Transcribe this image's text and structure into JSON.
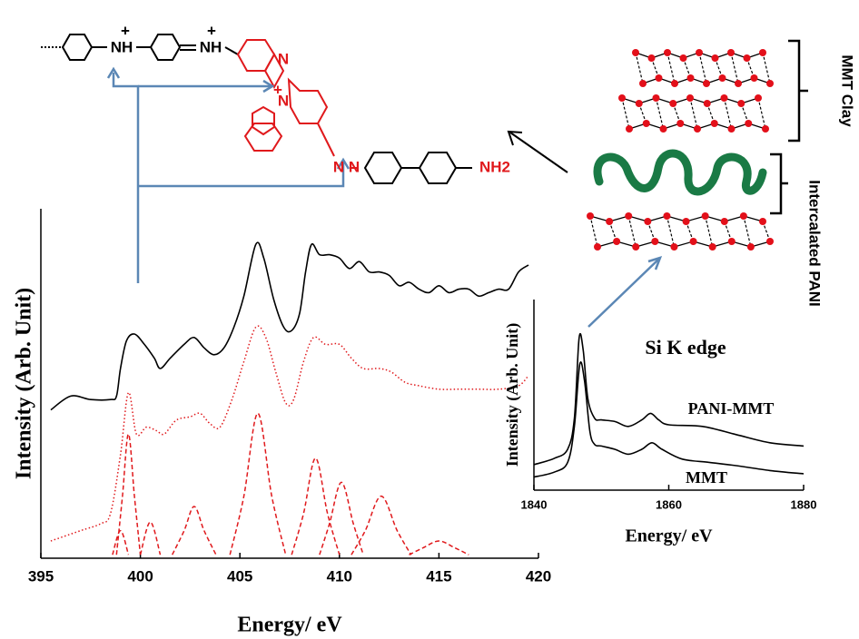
{
  "chart_data": [
    {
      "type": "line",
      "xlabel": "Energy/ eV",
      "ylabel": "Intensity (Arb. Unit)",
      "xlim": [
        395,
        420
      ],
      "ylim": [
        0,
        100
      ],
      "xticks": [
        395,
        400,
        405,
        410,
        415,
        420
      ],
      "series": [
        {
          "color": "#000000",
          "style": "solid",
          "x": [
            395.5,
            396.5,
            397.5,
            398.5,
            398.8,
            399.0,
            399.3,
            399.7,
            400.2,
            400.7,
            401.0,
            401.5,
            402.2,
            402.7,
            403.2,
            403.7,
            404.2,
            404.7,
            405.2,
            405.8,
            406.2,
            406.7,
            407.2,
            407.6,
            408.0,
            408.3,
            408.6,
            409.0,
            409.5,
            410.0,
            410.5,
            411.0,
            411.5,
            412,
            412.5,
            413,
            413.5,
            414,
            414.5,
            415,
            415.5,
            416,
            416.5,
            417,
            417.5,
            418,
            418.5,
            419,
            419.5
          ],
          "values": [
            43,
            47,
            46,
            46,
            47,
            55,
            63,
            65,
            62,
            58,
            55,
            58,
            62,
            64,
            61,
            59,
            61,
            67,
            76,
            91,
            87,
            75,
            67,
            66,
            71,
            83,
            91,
            88,
            88,
            87,
            84,
            86,
            83,
            83,
            82,
            79,
            80,
            78,
            77,
            79,
            77,
            78,
            78,
            76,
            77,
            78,
            78,
            83,
            85
          ]
        },
        {
          "color": "#e0191c",
          "style": "dotted",
          "x": [
            395.5,
            397,
            398,
            398.5,
            399.0,
            399.4,
            399.8,
            400.3,
            400.8,
            401.2,
            401.8,
            402.5,
            403,
            403.5,
            404,
            404.6,
            405.2,
            405.8,
            406.3,
            406.8,
            407.3,
            407.7,
            408.2,
            408.7,
            409.3,
            410,
            410.6,
            411.2,
            412,
            412.6,
            413.3,
            414,
            415,
            416,
            417,
            418,
            419,
            419.5
          ],
          "values": [
            5,
            8,
            10,
            13,
            30,
            48,
            36,
            38,
            37,
            36,
            40,
            41,
            42,
            39,
            38,
            46,
            57,
            67,
            64,
            54,
            45,
            46,
            57,
            64,
            62,
            62,
            58,
            55,
            55,
            54,
            51,
            50,
            49,
            49,
            49,
            49,
            50,
            53
          ]
        },
        {
          "color": "#e0191c",
          "style": "dashed",
          "x": [
            398.6,
            399.0,
            399.4
          ],
          "values": [
            1,
            8,
            1
          ]
        },
        {
          "color": "#e0191c",
          "style": "dashed",
          "x": [
            398.8,
            399.1,
            399.4,
            399.7,
            400.0
          ],
          "values": [
            1,
            18,
            36,
            18,
            1
          ]
        },
        {
          "color": "#e0191c",
          "style": "dashed",
          "x": [
            400.0,
            400.5,
            401.0
          ],
          "values": [
            1,
            10.5,
            1
          ]
        },
        {
          "color": "#e0191c",
          "style": "dashed",
          "x": [
            401.6,
            402.2,
            402.7,
            403.2,
            403.8
          ],
          "values": [
            1,
            8,
            15,
            8,
            1
          ]
        },
        {
          "color": "#e0191c",
          "style": "dashed",
          "x": [
            404.5,
            405.2,
            405.9,
            406.6,
            407.3
          ],
          "values": [
            1,
            18,
            42,
            18,
            1
          ]
        },
        {
          "color": "#e0191c",
          "style": "dashed",
          "x": [
            407.6,
            408.2,
            408.8,
            409.4,
            410.0
          ],
          "values": [
            1,
            13,
            29,
            13,
            1
          ]
        },
        {
          "color": "#e0191c",
          "style": "dashed",
          "x": [
            409.0,
            409.5,
            410.1,
            410.7,
            411.2
          ],
          "values": [
            1,
            10,
            22,
            10,
            1
          ]
        },
        {
          "color": "#e0191c",
          "style": "dashed",
          "x": [
            410.6,
            411.3,
            412.1,
            412.9,
            413.6
          ],
          "values": [
            1,
            8,
            18,
            8,
            1
          ]
        },
        {
          "color": "#e0191c",
          "style": "dashed",
          "x": [
            413.5,
            414.2,
            415.0,
            415.8,
            416.5
          ],
          "values": [
            1,
            3,
            5,
            3,
            1
          ]
        }
      ]
    },
    {
      "type": "line",
      "title": "Si K edge",
      "xlabel": "Energy/ eV",
      "ylabel": "Intensity (Arb. Unit)",
      "xlim": [
        1840,
        1880
      ],
      "ylim": [
        0,
        100
      ],
      "xticks": [
        1840,
        1860,
        1880
      ],
      "series": [
        {
          "name": "PANI-MMT",
          "color": "#000000",
          "style": "solid",
          "x": [
            1840,
            1843,
            1845,
            1846,
            1846.7,
            1847.3,
            1848,
            1849,
            1850,
            1852,
            1854,
            1856,
            1857.3,
            1858.5,
            1860,
            1865,
            1870,
            1875,
            1880
          ],
          "values": [
            15.6,
            19.4,
            25,
            44,
            93,
            86,
            56,
            44,
            43,
            42,
            39,
            43,
            47,
            43,
            40,
            39,
            34,
            29,
            27
          ]
        },
        {
          "name": "MMT",
          "color": "#000000",
          "style": "solid",
          "x": [
            1840,
            1843,
            1845,
            1846,
            1846.8,
            1847.5,
            1848.3,
            1849,
            1850,
            1852,
            1854,
            1856,
            1857.5,
            1859,
            1862,
            1866,
            1870,
            1875,
            1880
          ],
          "values": [
            8,
            11,
            17,
            39,
            77,
            67,
            36,
            28,
            27,
            25,
            22,
            25,
            29,
            25,
            19,
            17,
            15,
            12,
            10
          ]
        }
      ]
    }
  ],
  "diagram": {
    "clay_label": "MMT Clay",
    "pani_label": "Intercalated PANI",
    "labels": [
      "NH",
      "+",
      "NH",
      "+",
      "N",
      "N",
      "+",
      "N",
      "N",
      "NH2"
    ]
  }
}
